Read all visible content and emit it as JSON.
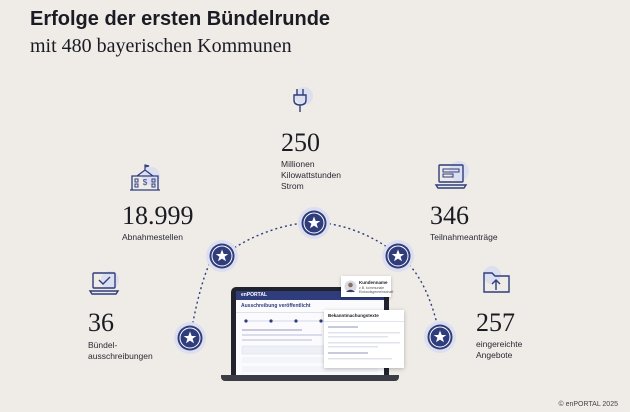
{
  "header": {
    "title": "Erfolge der ersten Bündelrunde",
    "subtitle": "mit 480 bayerischen Kommunen"
  },
  "stats": [
    {
      "value": "36",
      "label": "Bündel-\nausschreibungen",
      "icon": "laptop-check-icon"
    },
    {
      "value": "18.999",
      "label": "Abnahmestellen",
      "icon": "town-hall-icon"
    },
    {
      "value": "250",
      "label": "Millionen\nKilowattstunden\nStrom",
      "icon": "power-plug-icon"
    },
    {
      "value": "346",
      "label": "Teilnahmeanträge",
      "icon": "laptop-form-icon"
    },
    {
      "value": "257",
      "label": "eingereichte\nAngebote",
      "icon": "folder-upload-icon"
    }
  ],
  "screen": {
    "brand": "enPORTAL",
    "heading": "Ausschreibung veröffentlicht",
    "panel_heading": "Bekanntmachungstexte",
    "card_name": "Kundenname",
    "card_sub": "z.B. kommunale Einkaufsgemeinschaft"
  },
  "footer": {
    "copyright": "© enPORTAL 2025"
  },
  "colors": {
    "navy": "#2f3d7c",
    "accent": "#7b8ad0",
    "halo": "#dcdff0",
    "text": "#1b1b24"
  }
}
